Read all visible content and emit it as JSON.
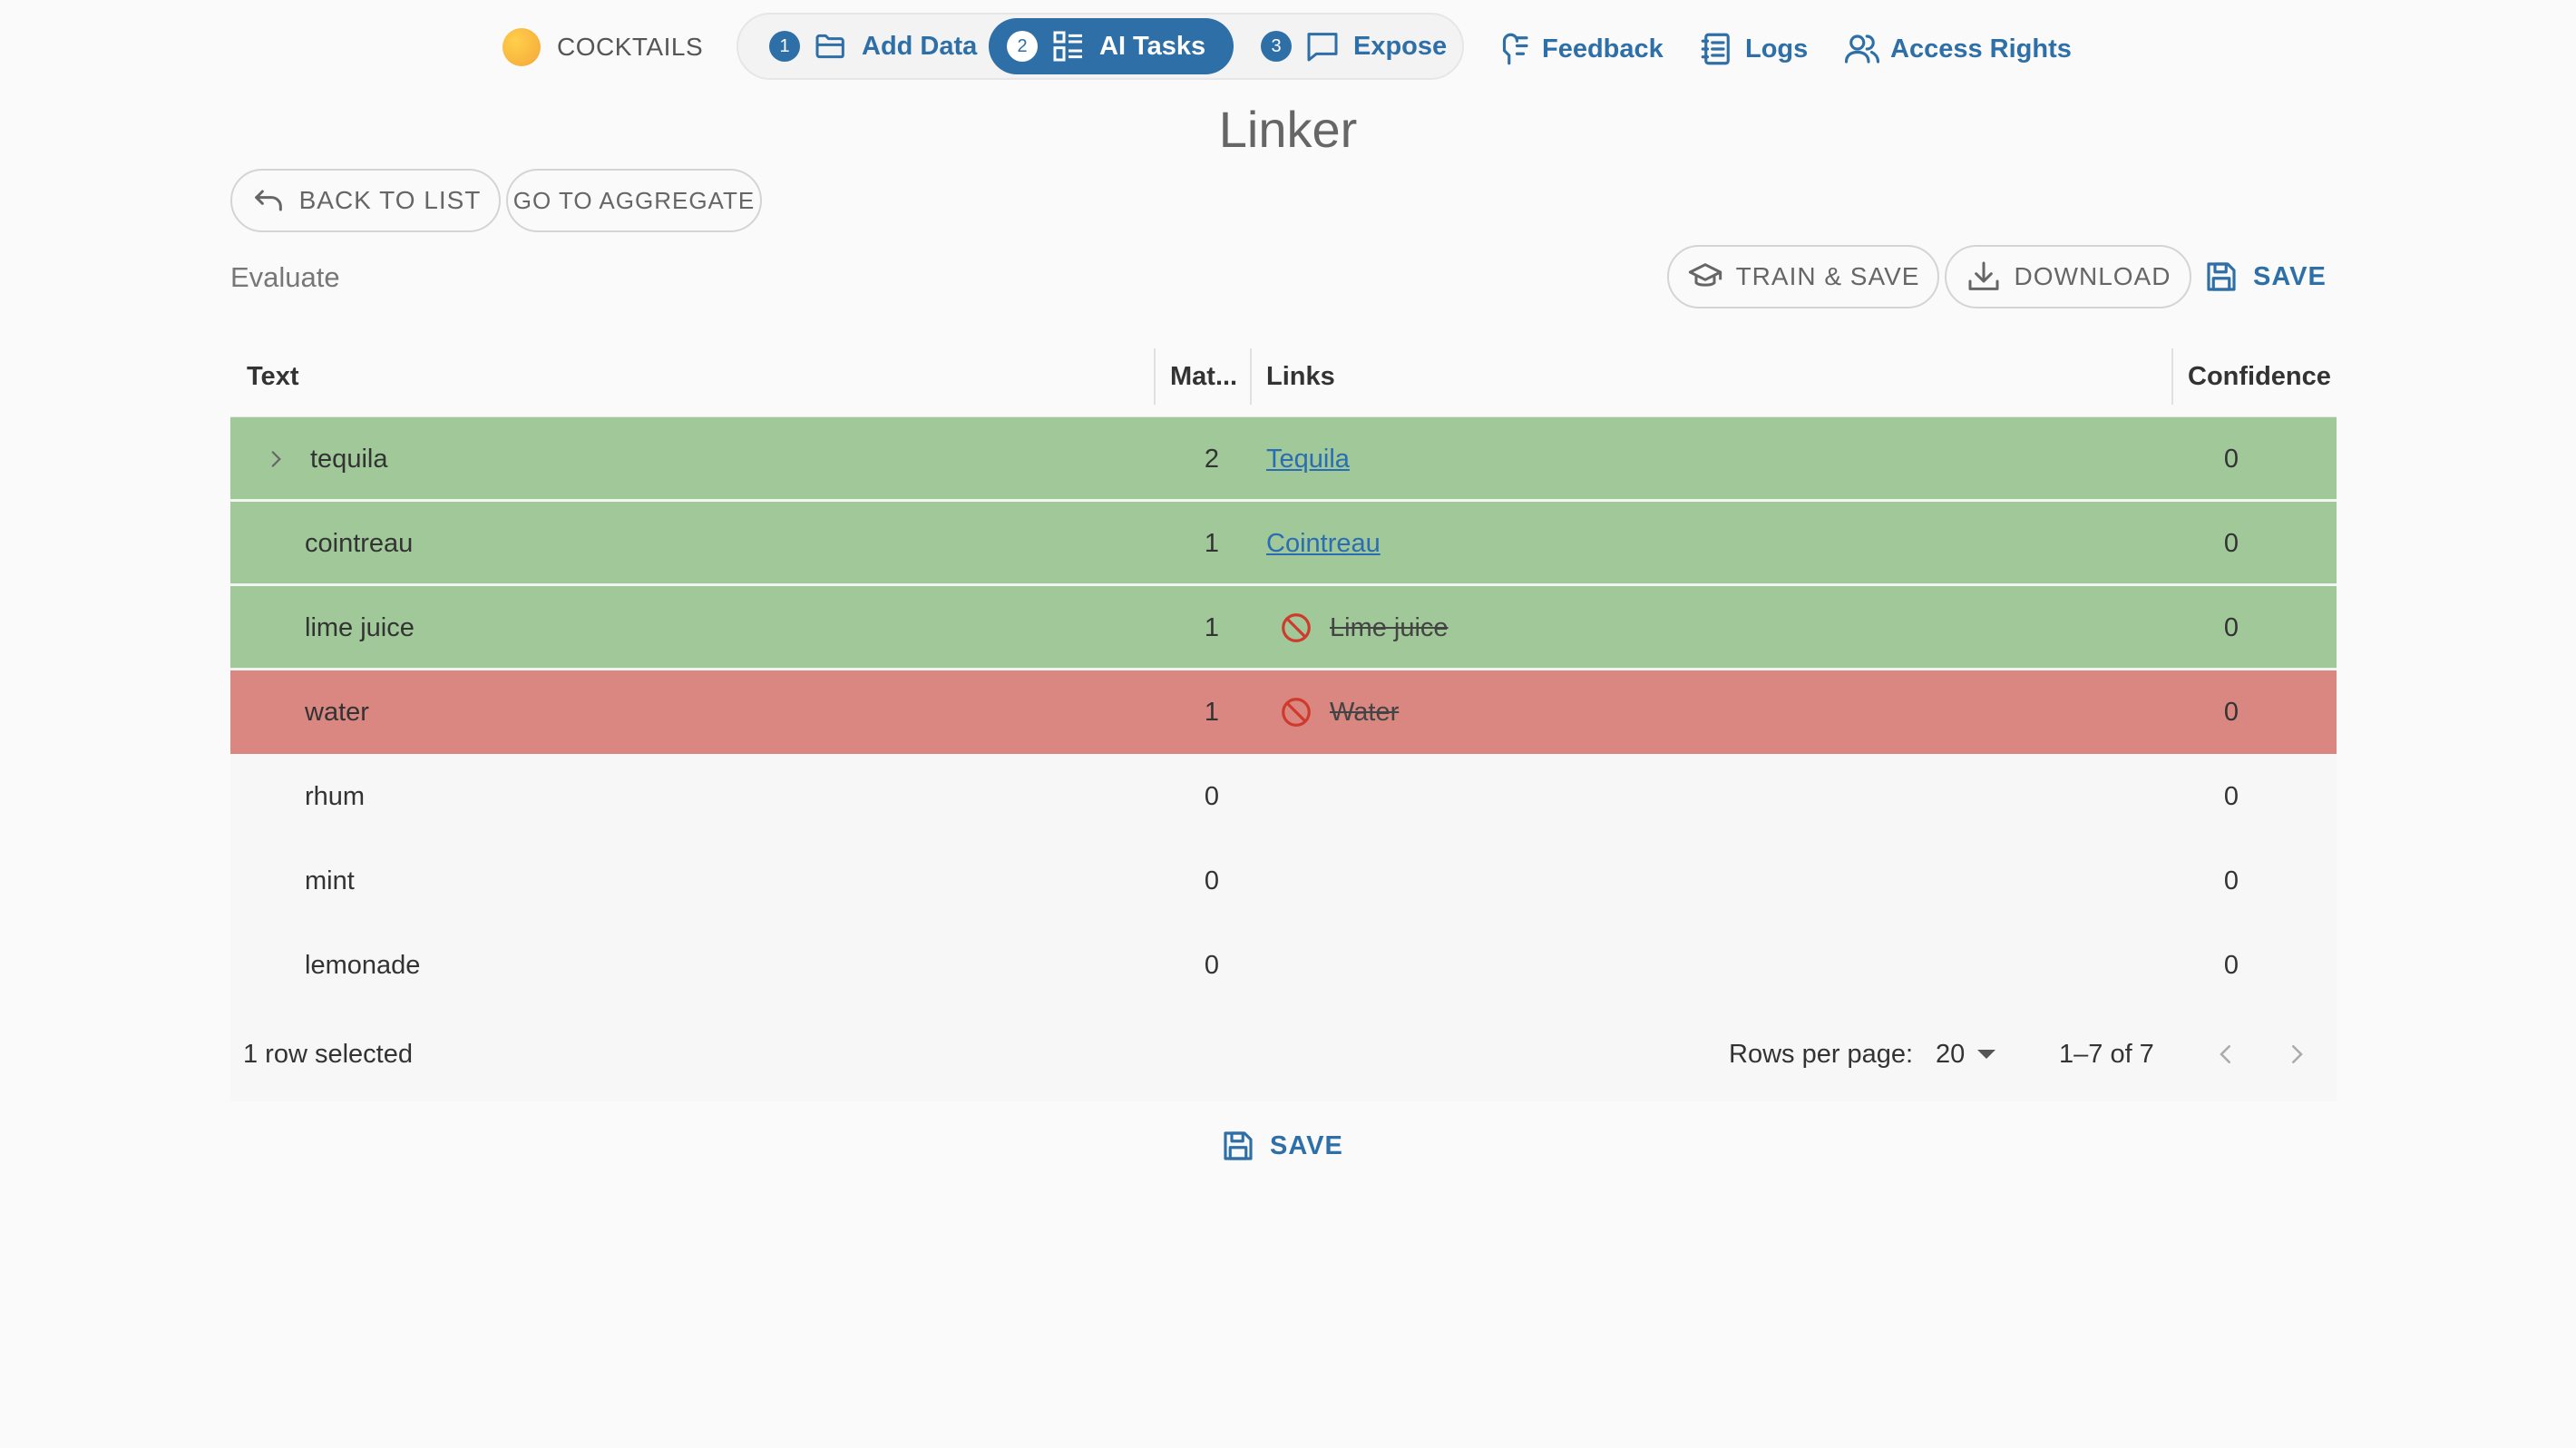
{
  "project": {
    "name": "COCKTAILS",
    "dot_color": "#f4a73a"
  },
  "steps": [
    {
      "number": "1",
      "label": "Add Data",
      "icon": "folder-icon"
    },
    {
      "number": "2",
      "label": "AI Tasks",
      "icon": "tasks-icon",
      "active": true
    },
    {
      "number": "3",
      "label": "Expose",
      "icon": "chat-icon"
    }
  ],
  "nav": {
    "feedback": "Feedback",
    "logs": "Logs",
    "access_rights": "Access Rights"
  },
  "page_title": "Linker",
  "buttons": {
    "back": "BACK TO LIST",
    "aggregate": "GO TO AGGREGATE",
    "train_save": "TRAIN & SAVE",
    "download": "DOWNLOAD",
    "save": "SAVE"
  },
  "section_label": "Evaluate",
  "table": {
    "columns": {
      "text": "Text",
      "matches": "Mat...",
      "links": "Links",
      "confidence": "Confidence"
    },
    "rows": [
      {
        "text": "tequila",
        "matches": "2",
        "link": "Tequila",
        "link_type": "link",
        "confidence": "0",
        "status": "green",
        "expandable": true
      },
      {
        "text": "cointreau",
        "matches": "1",
        "link": "Cointreau",
        "link_type": "link",
        "confidence": "0",
        "status": "green"
      },
      {
        "text": "lime juice",
        "matches": "1",
        "link": "Lime juice",
        "link_type": "rejected",
        "confidence": "0",
        "status": "green"
      },
      {
        "text": "water",
        "matches": "1",
        "link": "Water",
        "link_type": "rejected",
        "confidence": "0",
        "status": "red"
      },
      {
        "text": "rhum",
        "matches": "0",
        "link": "",
        "link_type": "none",
        "confidence": "0",
        "status": "plain"
      },
      {
        "text": "mint",
        "matches": "0",
        "link": "",
        "link_type": "none",
        "confidence": "0",
        "status": "plain"
      },
      {
        "text": "lemonade",
        "matches": "0",
        "link": "",
        "link_type": "none",
        "confidence": "0",
        "status": "plain"
      }
    ],
    "footer": {
      "selected": "1 row selected",
      "rows_per_page_label": "Rows per page:",
      "rows_per_page_value": "20",
      "range": "1–7 of 7"
    }
  },
  "colors": {
    "accent": "#2e6fa7",
    "row_green": "#a1c899",
    "row_red": "#da8782",
    "reject_icon": "#d03a2c"
  }
}
